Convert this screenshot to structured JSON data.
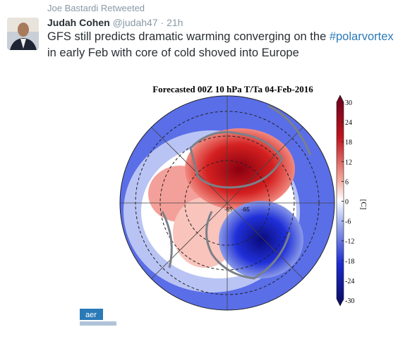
{
  "retweet": {
    "text": "Joe Bastardi Retweeted"
  },
  "tweet": {
    "author": "Judah Cohen",
    "handle": "@judah47",
    "separator": "·",
    "time": "21h",
    "text": {
      "before": "GFS still predicts dramatic warming converging on the ",
      "hashtag": "#polarvortex",
      "after": " in early Feb with core of cold shoved into Europe"
    }
  },
  "image": {
    "title": "Forecasted 00Z 10 hPa T/Ta 04-Feb-2016",
    "colorbar": {
      "ticks": [
        30,
        24,
        18,
        12,
        6,
        0,
        -6,
        -12,
        -18,
        -24,
        -30
      ],
      "unit": "[C]"
    },
    "contour_labels": [
      "-65",
      "-65"
    ],
    "logo": "aer"
  }
}
